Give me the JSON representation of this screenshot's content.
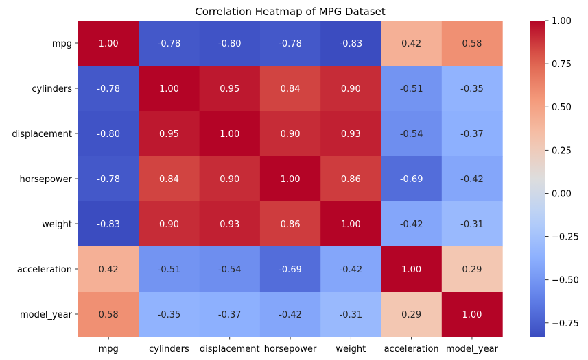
{
  "chart_data": {
    "type": "heatmap",
    "title": "Correlation Heatmap of MPG Dataset",
    "xlabel": "",
    "ylabel": "",
    "colormap": "coolwarm",
    "vmin": -0.83,
    "vmax": 1.0,
    "x_categories": [
      "mpg",
      "cylinders",
      "displacement",
      "horsepower",
      "weight",
      "acceleration",
      "model_year"
    ],
    "y_categories": [
      "mpg",
      "cylinders",
      "displacement",
      "horsepower",
      "weight",
      "acceleration",
      "model_year"
    ],
    "values": [
      [
        1.0,
        -0.78,
        -0.8,
        -0.78,
        -0.83,
        0.42,
        0.58
      ],
      [
        -0.78,
        1.0,
        0.95,
        0.84,
        0.9,
        -0.51,
        -0.35
      ],
      [
        -0.8,
        0.95,
        1.0,
        0.9,
        0.93,
        -0.54,
        -0.37
      ],
      [
        -0.78,
        0.84,
        0.9,
        1.0,
        0.86,
        -0.69,
        -0.42
      ],
      [
        -0.83,
        0.9,
        0.93,
        0.86,
        1.0,
        -0.42,
        -0.31
      ],
      [
        0.42,
        -0.51,
        -0.54,
        -0.69,
        -0.42,
        1.0,
        0.29
      ],
      [
        0.58,
        -0.35,
        -0.37,
        -0.42,
        -0.31,
        0.29,
        1.0
      ]
    ],
    "annotations": [
      [
        "1.00",
        "-0.78",
        "-0.80",
        "-0.78",
        "-0.83",
        "0.42",
        "0.58"
      ],
      [
        "-0.78",
        "1.00",
        "0.95",
        "0.84",
        "0.90",
        "-0.51",
        "-0.35"
      ],
      [
        "-0.80",
        "0.95",
        "1.00",
        "0.90",
        "0.93",
        "-0.54",
        "-0.37"
      ],
      [
        "-0.78",
        "0.84",
        "0.90",
        "1.00",
        "0.86",
        "-0.69",
        "-0.42"
      ],
      [
        "-0.83",
        "0.90",
        "0.93",
        "0.86",
        "1.00",
        "-0.42",
        "-0.31"
      ],
      [
        "0.42",
        "-0.51",
        "-0.54",
        "-0.69",
        "-0.42",
        "1.00",
        "0.29"
      ],
      [
        "0.58",
        "-0.35",
        "-0.37",
        "-0.42",
        "-0.31",
        "0.29",
        "1.00"
      ]
    ],
    "colorbar": {
      "ticks": [
        1.0,
        0.75,
        0.5,
        0.25,
        0.0,
        -0.25,
        -0.5,
        -0.75
      ],
      "tick_labels": [
        "1.00",
        "0.75",
        "0.50",
        "0.25",
        "0.00",
        "−0.25",
        "−0.50",
        "−0.75"
      ]
    },
    "grid": false,
    "legend": "colorbar-right"
  }
}
